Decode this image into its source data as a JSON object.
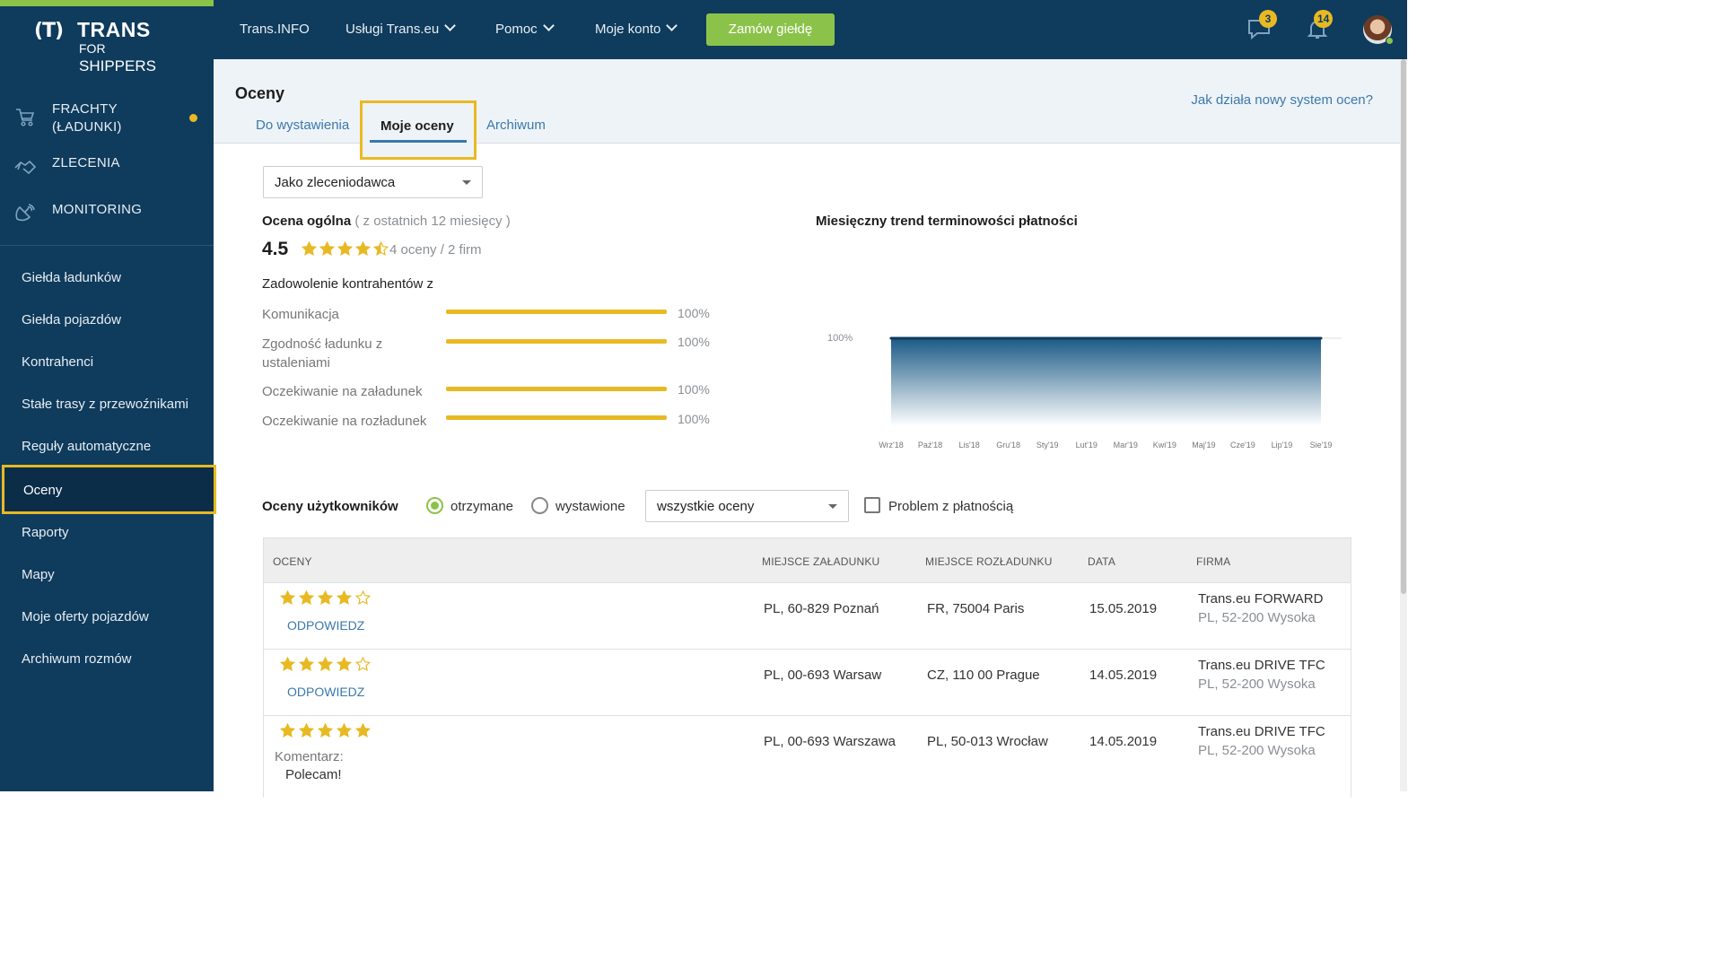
{
  "brand": {
    "mark": "(T)",
    "name": "TRANS",
    "sub_for": "FOR",
    "sub_shippers": "SHIPPERS"
  },
  "sidebar": {
    "main": [
      {
        "label": "FRACHTY\n(ŁADUNKI)",
        "icon": "cart-icon",
        "has_dot": true
      },
      {
        "label": "ZLECENIA",
        "icon": "handshake-icon"
      },
      {
        "label": "MONITORING",
        "icon": "satellite-icon"
      }
    ],
    "items": [
      {
        "label": "Giełda ładunków"
      },
      {
        "label": "Giełda pojazdów"
      },
      {
        "label": "Kontrahenci"
      },
      {
        "label": "Stałe trasy z przewoźnikami"
      },
      {
        "label": "Reguły automatyczne"
      },
      {
        "label": "Oceny",
        "active": true
      },
      {
        "label": "Raporty"
      },
      {
        "label": "Mapy"
      },
      {
        "label": "Moje oferty pojazdów"
      },
      {
        "label": "Archiwum rozmów"
      }
    ]
  },
  "topbar": {
    "nav": [
      {
        "label": "Trans.INFO",
        "dropdown": false
      },
      {
        "label": "Usługi Trans.eu",
        "dropdown": true
      },
      {
        "label": "Pomoc",
        "dropdown": true
      },
      {
        "label": "Moje konto",
        "dropdown": true
      }
    ],
    "order_button": "Zamów giełdę",
    "messages_count": "3",
    "notifications_count": "14"
  },
  "header": {
    "title": "Oceny",
    "help_link": "Jak działa nowy system ocen?",
    "tabs": [
      {
        "label": "Do wystawienia"
      },
      {
        "label": "Moje oceny",
        "active": true
      },
      {
        "label": "Archiwum"
      }
    ]
  },
  "role_select": {
    "value": "Jako zleceniodawca"
  },
  "overall": {
    "title": "Ocena ogólna",
    "period": "( z ostatnich 12 miesięcy )",
    "score": "4.5",
    "stars": 4.5,
    "meta": "4 oceny / 2 firm"
  },
  "satisfaction": {
    "title": "Zadowolenie kontrahentów z",
    "criteria": [
      {
        "label": "Komunikacja",
        "value": 100,
        "text": "100%"
      },
      {
        "label": "Zgodność ładunku z ustaleniami",
        "value": 100,
        "text": "100%"
      },
      {
        "label": "Oczekiwanie na załadunek",
        "value": 100,
        "text": "100%"
      },
      {
        "label": "Oczekiwanie na rozładunek",
        "value": 100,
        "text": "100%"
      }
    ]
  },
  "chart_data": {
    "type": "area",
    "title": "Miesięczny trend terminowości płatności",
    "categories": [
      "Wrz'18",
      "Paź'18",
      "Lis'18",
      "Gru'18",
      "Sty'19",
      "Lut'19",
      "Mar'19",
      "Kwi'19",
      "Maj'19",
      "Cze'19",
      "Lip'19",
      "Sie'19"
    ],
    "values": [
      100,
      100,
      100,
      100,
      100,
      100,
      100,
      100,
      100,
      100,
      100,
      100
    ],
    "ytick": "100%",
    "colors": {
      "line": "#0f3b5c",
      "fill_top": "#1b5a86",
      "fill_bottom": "#ffffff"
    }
  },
  "user_ratings": {
    "title": "Oceny użytkowników",
    "radio_received": "otrzymane",
    "radio_given": "wystawione",
    "selected": "received",
    "filter_select": "wszystkie oceny",
    "checkbox_label": "Problem z płatnością",
    "checkbox_checked": false,
    "columns": [
      "OCENY",
      "MIEJSCE ZAŁADUNKU",
      "MIEJSCE ROZŁADUNKU",
      "DATA",
      "FIRMA"
    ],
    "rows": [
      {
        "stars": 4,
        "action": "ODPOWIEDZ",
        "load": "PL, 60-829 Poznań",
        "unload": "FR, 75004 Paris",
        "date": "15.05.2019",
        "company": "Trans.eu FORWARD",
        "company_loc": "PL, 52-200 Wysoka"
      },
      {
        "stars": 4,
        "action": "ODPOWIEDZ",
        "load": "PL, 00-693 Warsaw",
        "unload": "CZ, 110 00 Prague",
        "date": "14.05.2019",
        "company": "Trans.eu DRIVE TFC",
        "company_loc": "PL, 52-200 Wysoka"
      },
      {
        "stars": 5,
        "comment_label": "Komentarz:",
        "comment": "Polecam!",
        "load": "PL, 00-693 Warszawa",
        "unload": "PL, 50-013 Wrocław",
        "date": "14.05.2019",
        "company": "Trans.eu DRIVE TFC",
        "company_loc": "PL, 52-200 Wysoka"
      }
    ]
  },
  "colors": {
    "navy": "#0f3b5c",
    "green": "#8bc34a",
    "yellow": "#e8b923",
    "link": "#3b79ad"
  }
}
